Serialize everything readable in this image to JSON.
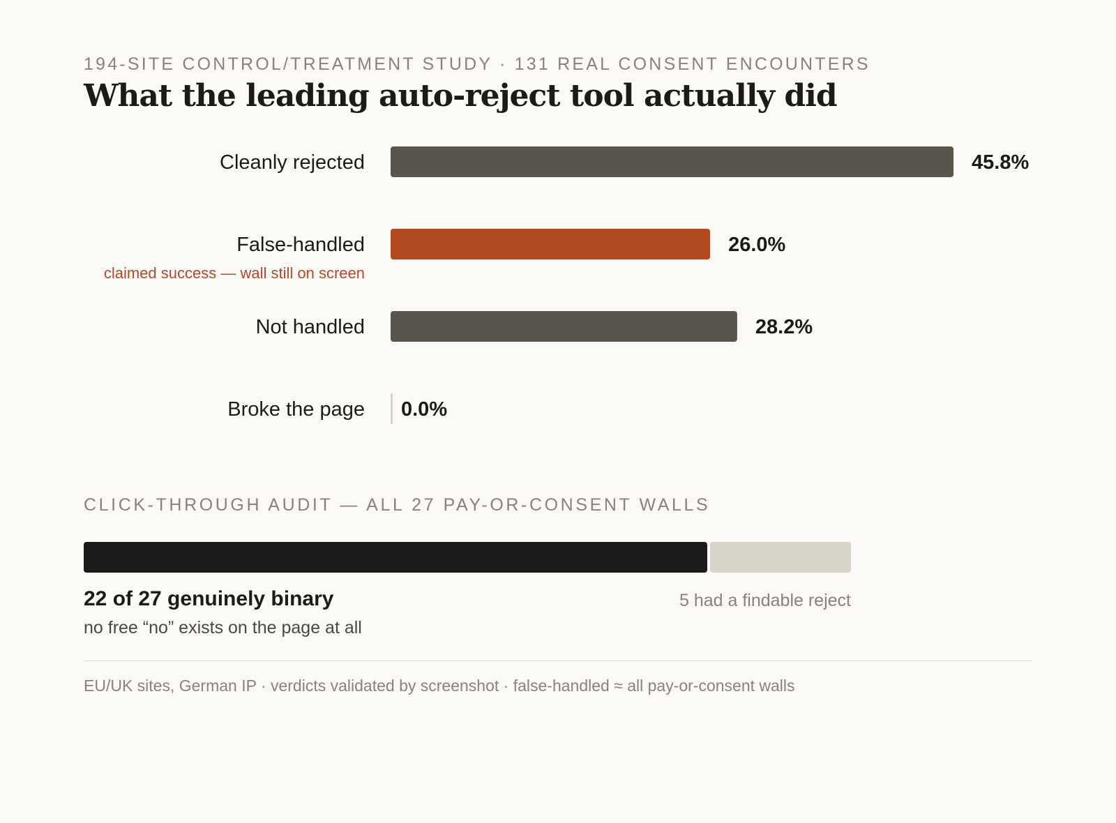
{
  "header": {
    "kicker": "194-SITE CONTROL/TREATMENT STUDY · 131 REAL CONSENT ENCOUNTERS",
    "title": "What the leading auto-reject tool actually did"
  },
  "chart_data": [
    {
      "type": "bar",
      "orientation": "horizontal",
      "categories": [
        "Cleanly rejected",
        "False-handled",
        "Not handled",
        "Broke the page"
      ],
      "sublabels": [
        "",
        "claimed success — wall still on screen",
        "",
        ""
      ],
      "values": [
        45.8,
        26.0,
        28.2,
        0.0
      ],
      "value_labels": [
        "45.8%",
        "26.0%",
        "28.2%",
        "0.0%"
      ],
      "colors": [
        "#58554d",
        "#b2491f",
        "#58554d",
        "#d6d1c8"
      ],
      "xlim": [
        0,
        45.8
      ],
      "grid": false
    },
    {
      "type": "bar",
      "orientation": "horizontal",
      "stacked": true,
      "title": "CLICK-THROUGH AUDIT — ALL 27 PAY-OR-CONSENT WALLS",
      "series": [
        {
          "values": [
            22
          ],
          "color": "#1c1b19"
        },
        {
          "values": [
            5
          ],
          "color": "#d9d4c9"
        }
      ],
      "total": 27,
      "annotations": {
        "main": "22 of 27 genuinely binary",
        "main_sub": "no free “no” exists on the page at all",
        "right": "5 had a findable reject"
      }
    }
  ],
  "footer": {
    "note": "EU/UK sites, German IP · verdicts validated by screenshot · false-handled ≈ all pay-or-consent walls"
  }
}
